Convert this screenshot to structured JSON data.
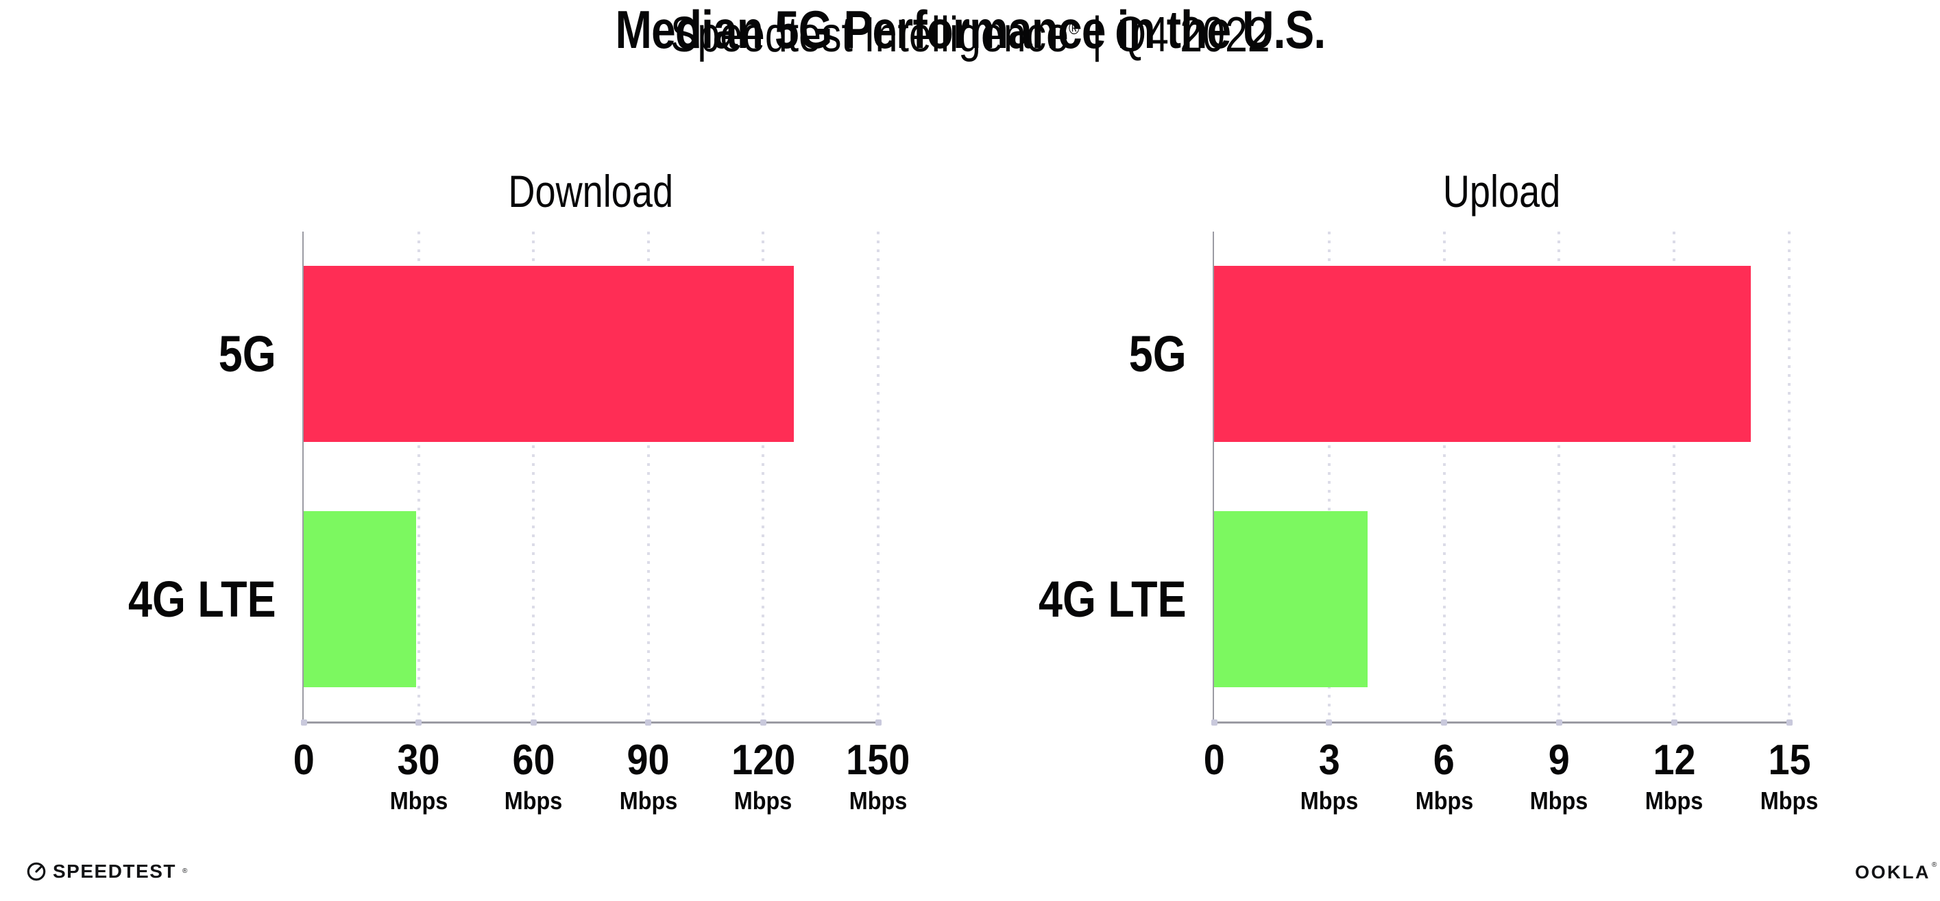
{
  "page": {
    "title": "Median 5G Performance in the U.S."
  },
  "subtitle": {
    "brand": "Speedtest Intelligence",
    "reg": "®",
    "divider": "|",
    "period": "Q4 2022"
  },
  "colors": {
    "bar_5g": "#FF2D55",
    "bar_4g_lte": "#7CF860",
    "gridline": "#DCDCE8",
    "axis": "#9B9BA3",
    "tick_dot": "#C9C9DC",
    "text": "#060607"
  },
  "chart_data": [
    {
      "type": "bar",
      "orientation": "horizontal",
      "title": "Download",
      "categories": [
        "5G",
        "4G LTE"
      ],
      "values": [
        128,
        29.4
      ],
      "unit": "Mbps",
      "xlim": [
        0,
        150
      ],
      "ticks": [
        0,
        30,
        60,
        90,
        120,
        150
      ],
      "grid": "dotted-vertical",
      "legend": "none"
    },
    {
      "type": "bar",
      "orientation": "horizontal",
      "title": "Upload",
      "categories": [
        "5G",
        "4G LTE"
      ],
      "values": [
        14,
        4
      ],
      "unit": "Mbps",
      "xlim": [
        0,
        15
      ],
      "ticks": [
        0,
        3,
        6,
        9,
        12,
        15
      ],
      "grid": "dotted-vertical",
      "legend": "none"
    }
  ],
  "footer": {
    "speedtest_label": "SPEEDTEST",
    "speedtest_reg": "®",
    "ookla_label": "OOKLA",
    "ookla_reg": "®"
  }
}
